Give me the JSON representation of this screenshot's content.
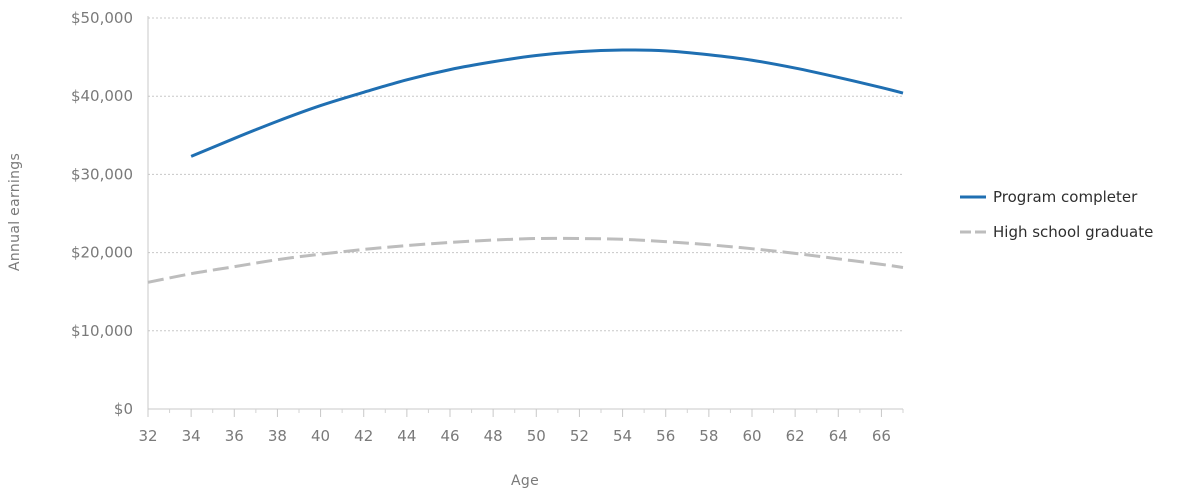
{
  "chart_data": {
    "type": "line",
    "xlabel": "Age",
    "ylabel": "Annual earnings",
    "xlim": [
      32,
      67
    ],
    "ylim": [
      0,
      50000
    ],
    "x_ticks": [
      32,
      34,
      36,
      38,
      40,
      42,
      44,
      46,
      48,
      50,
      52,
      54,
      56,
      58,
      60,
      62,
      64,
      66
    ],
    "x_tick_labels": [
      "32",
      "34",
      "36",
      "38",
      "40",
      "42",
      "44",
      "46",
      "48",
      "50",
      "52",
      "54",
      "56",
      "58",
      "60",
      "62",
      "64",
      "66"
    ],
    "y_ticks": [
      0,
      10000,
      20000,
      30000,
      40000,
      50000
    ],
    "y_tick_labels": [
      "$0",
      "$10,000",
      "$20,000",
      "$30,000",
      "$40,000",
      "$50,000"
    ],
    "grid": true,
    "legend_position": "right",
    "series": [
      {
        "name": "Program completer",
        "color": "#1f6fb2",
        "style": "solid",
        "x": [
          34,
          36,
          38,
          40,
          42,
          44,
          46,
          48,
          50,
          52,
          54,
          56,
          58,
          60,
          62,
          64,
          66,
          67
        ],
        "values": [
          32300,
          34600,
          36800,
          38800,
          40500,
          42100,
          43400,
          44400,
          45200,
          45700,
          45900,
          45800,
          45300,
          44600,
          43600,
          42400,
          41100,
          40400
        ]
      },
      {
        "name": "High school graduate",
        "color": "#bdbdbd",
        "style": "dashed",
        "x": [
          32,
          34,
          36,
          38,
          40,
          42,
          44,
          46,
          48,
          50,
          52,
          54,
          56,
          58,
          60,
          62,
          64,
          66,
          67
        ],
        "values": [
          16200,
          17300,
          18200,
          19100,
          19800,
          20400,
          20900,
          21300,
          21600,
          21800,
          21800,
          21700,
          21400,
          21000,
          20500,
          19900,
          19200,
          18500,
          18100
        ]
      }
    ]
  }
}
